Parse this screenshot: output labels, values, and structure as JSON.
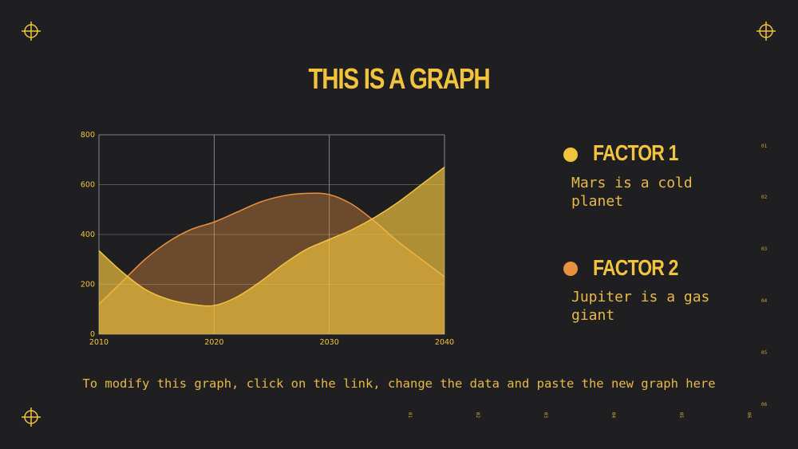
{
  "title": "THIS IS A GRAPH",
  "factors": [
    {
      "title": "FACTOR 1",
      "description": "Mars is a cold planet",
      "color": "#f2c43e"
    },
    {
      "title": "FACTOR 2",
      "description": "Jupiter is a gas giant",
      "color": "#e8913e"
    }
  ],
  "footer": "To modify this graph, click on the link, change the data and paste the new graph here",
  "side_ticks": [
    "01",
    "02",
    "03",
    "04",
    "05",
    "06"
  ],
  "bottom_ticks": [
    "01",
    "02",
    "03",
    "04",
    "05",
    "06"
  ],
  "icons": {
    "corner": "crosshair-icon"
  },
  "chart_data": {
    "type": "area",
    "x": [
      2010,
      2012,
      2014,
      2016,
      2018,
      2020,
      2022,
      2024,
      2026,
      2028,
      2030,
      2032,
      2034,
      2036,
      2038,
      2040
    ],
    "xticks": [
      2010,
      2020,
      2030,
      2040
    ],
    "yticks": [
      0,
      200,
      400,
      600,
      800
    ],
    "xlim": [
      2010,
      2040
    ],
    "ylim": [
      0,
      800
    ],
    "grid": true,
    "series": [
      {
        "color": "#e8913e",
        "values": [
          120,
          210,
          300,
          370,
          420,
          450,
          490,
          530,
          555,
          565,
          560,
          520,
          450,
          370,
          300,
          230
        ]
      },
      {
        "color": "#f2c43e",
        "values": [
          335,
          250,
          180,
          140,
          120,
          115,
          150,
          210,
          280,
          340,
          380,
          420,
          470,
          530,
          600,
          670
        ]
      }
    ]
  }
}
